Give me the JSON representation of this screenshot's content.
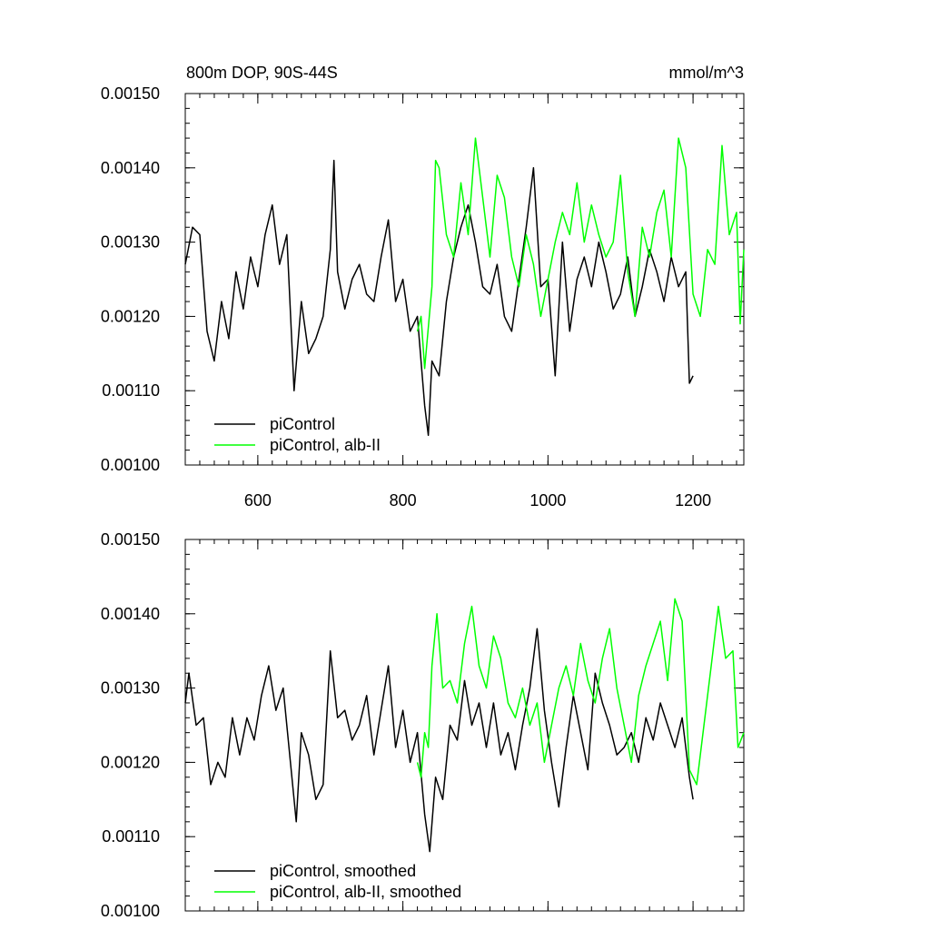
{
  "chart_data": [
    {
      "type": "line",
      "title": "800m DOP, 90S-44S",
      "units": "mmol/m^3",
      "xlim": [
        500,
        1270
      ],
      "ylim": [
        0.001,
        0.0015
      ],
      "x_ticks": [
        600,
        800,
        1000,
        1200
      ],
      "x_tick_labels": [
        "600",
        "800",
        "1000",
        "1200"
      ],
      "y_ticks": [
        0.001,
        0.0011,
        0.0012,
        0.0013,
        0.0014,
        0.0015
      ],
      "y_tick_labels": [
        "0.00100",
        "0.00110",
        "0.00120",
        "0.00130",
        "0.00140",
        "0.00150"
      ],
      "legend_position": "bottom-left",
      "series": [
        {
          "name": "piControl",
          "color": "#000000",
          "x": [
            500,
            510,
            520,
            530,
            540,
            550,
            560,
            570,
            580,
            590,
            600,
            610,
            620,
            630,
            640,
            650,
            660,
            670,
            680,
            690,
            700,
            705,
            710,
            720,
            730,
            740,
            750,
            760,
            770,
            780,
            790,
            800,
            810,
            820,
            830,
            835,
            840,
            850,
            860,
            870,
            880,
            890,
            900,
            910,
            920,
            930,
            940,
            950,
            960,
            970,
            980,
            990,
            1000,
            1010,
            1020,
            1030,
            1040,
            1050,
            1060,
            1070,
            1080,
            1090,
            1100,
            1110,
            1120,
            1130,
            1140,
            1150,
            1160,
            1170,
            1180,
            1190,
            1195,
            1200
          ],
          "y": [
            0.00127,
            0.00132,
            0.00131,
            0.00118,
            0.00114,
            0.00122,
            0.00117,
            0.00126,
            0.00121,
            0.00128,
            0.00124,
            0.00131,
            0.00135,
            0.00127,
            0.00131,
            0.0011,
            0.00122,
            0.00115,
            0.00117,
            0.0012,
            0.00129,
            0.00141,
            0.00126,
            0.00121,
            0.00125,
            0.00127,
            0.00123,
            0.00122,
            0.00128,
            0.00133,
            0.00122,
            0.00125,
            0.00118,
            0.0012,
            0.00108,
            0.00104,
            0.00114,
            0.00112,
            0.00122,
            0.00128,
            0.00132,
            0.00135,
            0.0013,
            0.00124,
            0.00123,
            0.00127,
            0.0012,
            0.00118,
            0.00125,
            0.00132,
            0.0014,
            0.00124,
            0.00125,
            0.00112,
            0.0013,
            0.00118,
            0.00125,
            0.00128,
            0.00124,
            0.0013,
            0.00126,
            0.00121,
            0.00123,
            0.00128,
            0.0012,
            0.00124,
            0.00129,
            0.00126,
            0.00122,
            0.00128,
            0.00124,
            0.00126,
            0.00111,
            0.00112
          ]
        },
        {
          "name": "piControl, alb-II",
          "color": "#00ff00",
          "x": [
            820,
            825,
            830,
            840,
            845,
            850,
            860,
            870,
            880,
            890,
            900,
            910,
            920,
            930,
            940,
            950,
            960,
            970,
            980,
            990,
            1000,
            1010,
            1020,
            1030,
            1040,
            1050,
            1060,
            1070,
            1080,
            1090,
            1100,
            1110,
            1120,
            1130,
            1140,
            1150,
            1160,
            1170,
            1180,
            1190,
            1200,
            1210,
            1220,
            1230,
            1240,
            1250,
            1260,
            1265,
            1270
          ],
          "y": [
            0.00118,
            0.0012,
            0.00113,
            0.00124,
            0.00141,
            0.0014,
            0.00131,
            0.00128,
            0.00138,
            0.00131,
            0.00144,
            0.00136,
            0.00128,
            0.00139,
            0.00136,
            0.00128,
            0.00124,
            0.00131,
            0.00127,
            0.0012,
            0.00125,
            0.0013,
            0.00134,
            0.00131,
            0.00138,
            0.0013,
            0.00135,
            0.00131,
            0.00128,
            0.0013,
            0.00139,
            0.00126,
            0.0012,
            0.00132,
            0.00128,
            0.00134,
            0.00137,
            0.00128,
            0.00144,
            0.0014,
            0.00123,
            0.0012,
            0.00129,
            0.00127,
            0.00143,
            0.00131,
            0.00134,
            0.00119,
            0.00129
          ]
        }
      ]
    },
    {
      "type": "line",
      "xlim": [
        500,
        1270
      ],
      "ylim": [
        0.001,
        0.0015
      ],
      "x_ticks": [
        600,
        800,
        1000,
        1200
      ],
      "y_ticks": [
        0.001,
        0.0011,
        0.0012,
        0.0013,
        0.0014,
        0.0015
      ],
      "y_tick_labels": [
        "0.00100",
        "0.00110",
        "0.00120",
        "0.00130",
        "0.00140",
        "0.00150"
      ],
      "legend_position": "bottom-left",
      "series": [
        {
          "name": "piControl, smoothed",
          "color": "#000000",
          "x": [
            500,
            505,
            515,
            525,
            535,
            545,
            555,
            565,
            575,
            585,
            595,
            605,
            615,
            625,
            635,
            645,
            653,
            660,
            670,
            680,
            690,
            700,
            710,
            720,
            730,
            740,
            750,
            760,
            770,
            780,
            790,
            800,
            810,
            820,
            830,
            837,
            845,
            855,
            865,
            875,
            885,
            895,
            905,
            915,
            925,
            935,
            945,
            955,
            965,
            975,
            985,
            995,
            1005,
            1015,
            1025,
            1035,
            1045,
            1055,
            1065,
            1075,
            1085,
            1095,
            1105,
            1115,
            1125,
            1135,
            1145,
            1155,
            1165,
            1175,
            1185,
            1195,
            1200
          ],
          "y": [
            0.00128,
            0.00132,
            0.00125,
            0.00126,
            0.00117,
            0.0012,
            0.00118,
            0.00126,
            0.00121,
            0.00126,
            0.00123,
            0.00129,
            0.00133,
            0.00127,
            0.0013,
            0.0012,
            0.00112,
            0.00124,
            0.00121,
            0.00115,
            0.00117,
            0.00135,
            0.00126,
            0.00127,
            0.00123,
            0.00125,
            0.00129,
            0.00121,
            0.00127,
            0.00133,
            0.00122,
            0.00127,
            0.0012,
            0.00124,
            0.00113,
            0.00108,
            0.00118,
            0.00115,
            0.00125,
            0.00123,
            0.00131,
            0.00125,
            0.00128,
            0.00122,
            0.00128,
            0.00121,
            0.00124,
            0.00119,
            0.00125,
            0.0013,
            0.00138,
            0.00127,
            0.0012,
            0.00114,
            0.00122,
            0.00129,
            0.00124,
            0.00119,
            0.00132,
            0.00128,
            0.00125,
            0.00121,
            0.00122,
            0.00124,
            0.0012,
            0.00126,
            0.00123,
            0.00128,
            0.00125,
            0.00122,
            0.00126,
            0.00118,
            0.00115
          ]
        },
        {
          "name": "piControl, alb-II, smoothed",
          "color": "#00ff00",
          "x": [
            820,
            825,
            830,
            835,
            840,
            847,
            855,
            865,
            875,
            885,
            895,
            905,
            915,
            925,
            935,
            945,
            955,
            965,
            975,
            985,
            995,
            1005,
            1015,
            1025,
            1035,
            1045,
            1055,
            1065,
            1075,
            1085,
            1095,
            1105,
            1115,
            1125,
            1135,
            1145,
            1155,
            1165,
            1175,
            1185,
            1195,
            1205,
            1215,
            1225,
            1235,
            1245,
            1255,
            1262,
            1270
          ],
          "y": [
            0.0012,
            0.00118,
            0.00124,
            0.00122,
            0.00133,
            0.0014,
            0.0013,
            0.00131,
            0.00128,
            0.00136,
            0.00141,
            0.00133,
            0.0013,
            0.00137,
            0.00134,
            0.00128,
            0.00126,
            0.0013,
            0.00125,
            0.00128,
            0.0012,
            0.00125,
            0.0013,
            0.00133,
            0.00129,
            0.00136,
            0.00131,
            0.00128,
            0.00134,
            0.00138,
            0.0013,
            0.00125,
            0.0012,
            0.00129,
            0.00133,
            0.00136,
            0.00139,
            0.00131,
            0.00142,
            0.00139,
            0.00119,
            0.00117,
            0.00125,
            0.00133,
            0.00141,
            0.00134,
            0.00135,
            0.00122,
            0.00124
          ]
        }
      ]
    }
  ]
}
